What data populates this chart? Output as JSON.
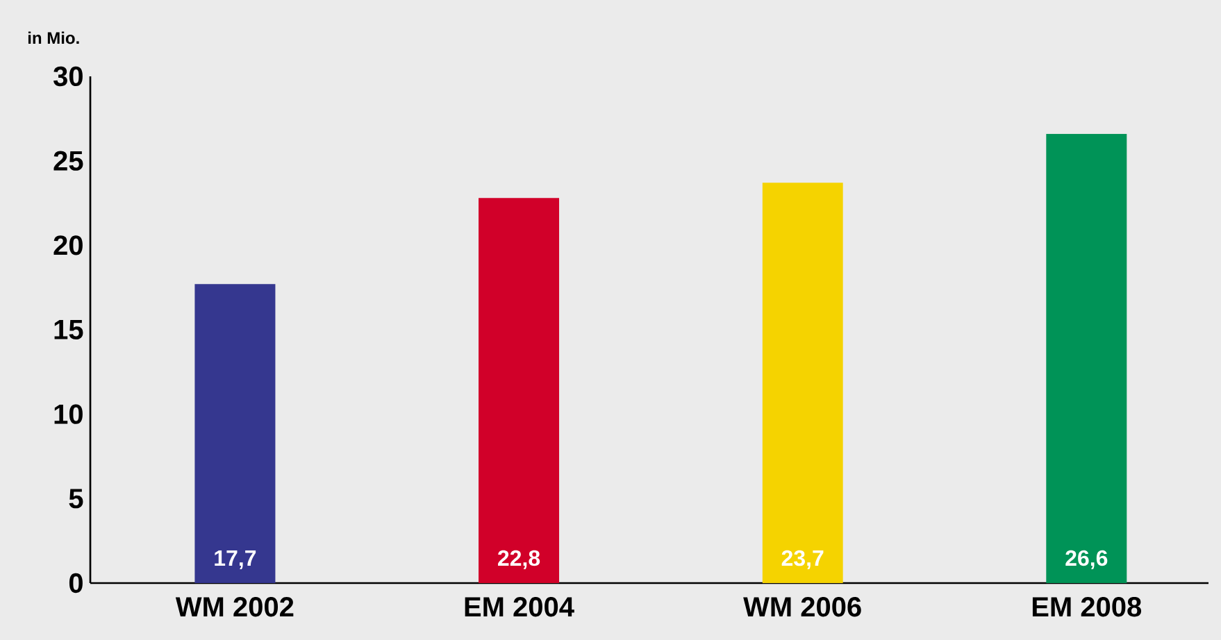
{
  "chart_data": {
    "type": "bar",
    "ylabel": "in Mio.",
    "categories": [
      "WM 2002",
      "EM 2004",
      "WM 2006",
      "EM 2008"
    ],
    "values": [
      17.7,
      22.8,
      23.7,
      26.6
    ],
    "colors": [
      "#35378f",
      "#d10029",
      "#f5d300",
      "#009357"
    ],
    "value_labels": [
      "17,7",
      "22,8",
      "23,7",
      "26,6"
    ],
    "ylim": [
      0,
      30
    ],
    "yticks": [
      0,
      5,
      10,
      15,
      20,
      25,
      30
    ],
    "grid": false
  }
}
